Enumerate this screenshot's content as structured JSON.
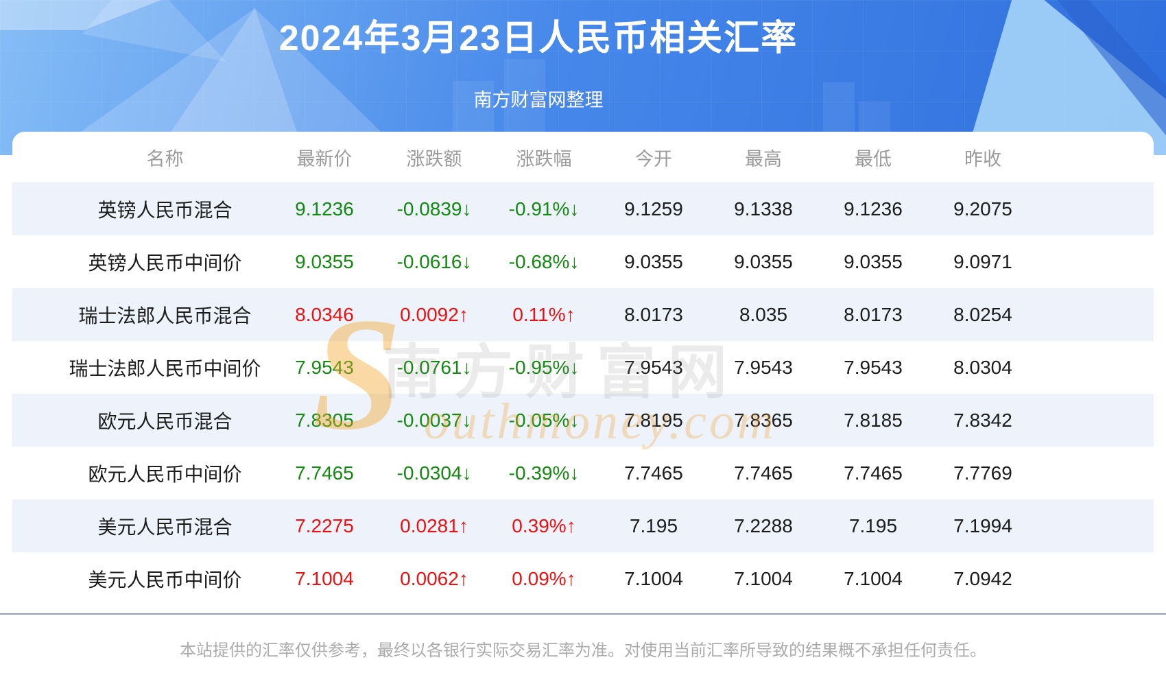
{
  "header": {
    "title": "2024年3月23日人民币相关汇率",
    "subtitle": "南方财富网整理"
  },
  "chart_data": {
    "type": "table",
    "title": "2024年3月23日人民币相关汇率",
    "columns": [
      "名称",
      "最新价",
      "涨跌额",
      "涨跌幅",
      "今开",
      "最高",
      "最低",
      "昨收"
    ],
    "rows": [
      {
        "name": "英镑人民币混合",
        "latest": "9.1236",
        "change": "-0.0839↓",
        "change_pct": "-0.91%↓",
        "open": "9.1259",
        "high": "9.1338",
        "low": "9.1236",
        "prev_close": "9.2075",
        "trend": "down"
      },
      {
        "name": "英镑人民币中间价",
        "latest": "9.0355",
        "change": "-0.0616↓",
        "change_pct": "-0.68%↓",
        "open": "9.0355",
        "high": "9.0355",
        "low": "9.0355",
        "prev_close": "9.0971",
        "trend": "down"
      },
      {
        "name": "瑞士法郎人民币混合",
        "latest": "8.0346",
        "change": "0.0092↑",
        "change_pct": "0.11%↑",
        "open": "8.0173",
        "high": "8.035",
        "low": "8.0173",
        "prev_close": "8.0254",
        "trend": "up"
      },
      {
        "name": "瑞士法郎人民币中间价",
        "latest": "7.9543",
        "change": "-0.0761↓",
        "change_pct": "-0.95%↓",
        "open": "7.9543",
        "high": "7.9543",
        "low": "7.9543",
        "prev_close": "8.0304",
        "trend": "down"
      },
      {
        "name": "欧元人民币混合",
        "latest": "7.8305",
        "change": "-0.0037↓",
        "change_pct": "-0.05%↓",
        "open": "7.8195",
        "high": "7.8365",
        "low": "7.8185",
        "prev_close": "7.8342",
        "trend": "down"
      },
      {
        "name": "欧元人民币中间价",
        "latest": "7.7465",
        "change": "-0.0304↓",
        "change_pct": "-0.39%↓",
        "open": "7.7465",
        "high": "7.7465",
        "low": "7.7465",
        "prev_close": "7.7769",
        "trend": "down"
      },
      {
        "name": "美元人民币混合",
        "latest": "7.2275",
        "change": "0.0281↑",
        "change_pct": "0.39%↑",
        "open": "7.195",
        "high": "7.2288",
        "low": "7.195",
        "prev_close": "7.1994",
        "trend": "up"
      },
      {
        "name": "美元人民币中间价",
        "latest": "7.1004",
        "change": "0.0062↑",
        "change_pct": "0.09%↑",
        "open": "7.1004",
        "high": "7.1004",
        "low": "7.1004",
        "prev_close": "7.0942",
        "trend": "up"
      }
    ]
  },
  "watermark": {
    "s": "S",
    "cn": "南方财富网",
    "en": "outhmoney.com"
  },
  "footer": {
    "disclaimer": "本站提供的汇率仅供参考，最终以各银行实际交易汇率为准。对使用当前汇率所导致的结果概不承担任何责任。"
  },
  "colors": {
    "up": "#ec1111",
    "down": "#12890f",
    "stripe": "#edf2fb",
    "divider": "#8fa2b6",
    "header_text": "#9b9b9b",
    "footer_text": "#ababab",
    "hero_from": "#85bdf6",
    "hero_mid": "#4587ea",
    "hero_to": "#2f6fdd"
  }
}
